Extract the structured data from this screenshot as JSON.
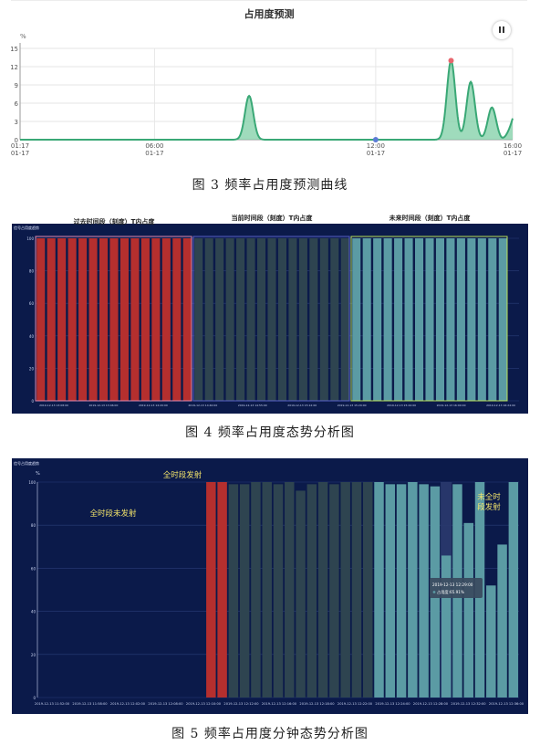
{
  "chart_data": [
    {
      "type": "area",
      "title": "占用度预测",
      "ylabel": "%",
      "ylim": [
        0,
        15
      ],
      "y_ticks": [
        "0",
        "3",
        "6",
        "9",
        "12",
        "15"
      ],
      "y_tick_values": [
        0,
        3,
        6,
        9,
        12,
        15
      ],
      "x_ticks": [
        {
          "value": 0,
          "line1": "01:17",
          "line2": "01-17"
        },
        {
          "value": 0.273,
          "line1": "06:00",
          "line2": "01-17"
        },
        {
          "value": 0.722,
          "line1": "12:00",
          "line2": "01-17"
        },
        {
          "value": 1,
          "line1": "16:00",
          "line2": "01-17"
        }
      ],
      "peaks": [
        {
          "center": 0.465,
          "height": 7.2
        },
        {
          "center": 0.875,
          "height": 13.0
        },
        {
          "center": 0.915,
          "height": 9.5
        },
        {
          "center": 0.958,
          "height": 5.3
        },
        {
          "center": 1.0,
          "height": 3.5
        }
      ],
      "markers": [
        {
          "x": 0.875,
          "y": 13.0,
          "color": "#e8666e"
        },
        {
          "x": 0.722,
          "y": 0,
          "color": "#5b7bd5"
        }
      ],
      "grid": true,
      "colors": {
        "line": "#3aa876",
        "fill": "#7fcfa6"
      },
      "pause_icon": "pause-icon"
    },
    {
      "type": "bar",
      "chart_label": "信号占用度趋势",
      "ylim": [
        0,
        100
      ],
      "y_ticks": [
        "0",
        "20",
        "40",
        "60",
        "80",
        "100"
      ],
      "y_tick_values": [
        0,
        20,
        40,
        60,
        80,
        100
      ],
      "groups": [
        {
          "label": "过去时间段（刻度）T内占度",
          "count": 15,
          "color": "#b52f2e",
          "box_color": "#e08ab0",
          "value": 100
        },
        {
          "label": "当前时间段（刻度）T内占度",
          "count": 15,
          "color": "#2e4450",
          "box_color": "#5a62c8",
          "value": 100
        },
        {
          "label": "未来时间段（刻度）T内占度",
          "count": 15,
          "color": "#5b9ba4",
          "box_color": "#b9e05a",
          "value": 100
        }
      ],
      "x_ticks": [
        "2019-12-13 13:08:00",
        "2019-12-13 13:46:00",
        "2019-12-13 14:20:00",
        "2019-12-13 14:40:00",
        "2019-12-13 14:55:00",
        "2019-12-13 15:12:00",
        "2019-12-13 15:29:00",
        "2019-12-13 15:44:00",
        "2019-12-13 16:00:00",
        "2019-12-13 16:24:00"
      ],
      "colors": {
        "background": "#0b1a4a",
        "grid": "#2a3d78",
        "axis_text": "#c9d3f0"
      }
    },
    {
      "type": "bar",
      "chart_label": "信号占用度趋势",
      "ylabel": "%",
      "ylim": [
        0,
        100
      ],
      "y_ticks": [
        "0",
        "20",
        "40",
        "60",
        "80",
        "100"
      ],
      "y_tick_values": [
        0,
        20,
        40,
        60,
        80,
        100
      ],
      "annotations": [
        {
          "text": "全时段未发射",
          "color": "#f2e36a"
        },
        {
          "text": "全时段发射",
          "color": "#f2e36a"
        },
        {
          "text": "未全时",
          "color": "#f2e36a"
        },
        {
          "text": "段发射",
          "color": "#f2e36a"
        }
      ],
      "bars": [
        {
          "idx": 15,
          "value": 100,
          "color": "#b52f2e"
        },
        {
          "idx": 16,
          "value": 100,
          "color": "#b52f2e"
        },
        {
          "idx": 17,
          "value": 99,
          "color": "#2e4450"
        },
        {
          "idx": 18,
          "value": 99,
          "color": "#2e4450"
        },
        {
          "idx": 19,
          "value": 100,
          "color": "#2e4450"
        },
        {
          "idx": 20,
          "value": 100,
          "color": "#2e4450"
        },
        {
          "idx": 21,
          "value": 99,
          "color": "#2e4450"
        },
        {
          "idx": 22,
          "value": 100,
          "color": "#2e4450"
        },
        {
          "idx": 23,
          "value": 96,
          "color": "#2e4450"
        },
        {
          "idx": 24,
          "value": 99,
          "color": "#2e4450"
        },
        {
          "idx": 25,
          "value": 100,
          "color": "#2e4450"
        },
        {
          "idx": 26,
          "value": 99,
          "color": "#2e4450"
        },
        {
          "idx": 27,
          "value": 100,
          "color": "#2e4450"
        },
        {
          "idx": 28,
          "value": 100,
          "color": "#2e4450"
        },
        {
          "idx": 29,
          "value": 100,
          "color": "#2e4450"
        },
        {
          "idx": 30,
          "value": 100,
          "color": "#5b9ba4"
        },
        {
          "idx": 31,
          "value": 99,
          "color": "#5b9ba4"
        },
        {
          "idx": 32,
          "value": 99,
          "color": "#5b9ba4"
        },
        {
          "idx": 33,
          "value": 100,
          "color": "#5b9ba4"
        },
        {
          "idx": 34,
          "value": 99,
          "color": "#5b9ba4"
        },
        {
          "idx": 35,
          "value": 98,
          "color": "#5b9ba4"
        },
        {
          "idx": 36,
          "value": 65.91,
          "color": "#5b9ba4"
        },
        {
          "idx": 37,
          "value": 99,
          "color": "#5b9ba4"
        },
        {
          "idx": 38,
          "value": 81,
          "color": "#5b9ba4"
        },
        {
          "idx": 39,
          "value": 100,
          "color": "#5b9ba4"
        },
        {
          "idx": 40,
          "value": 52,
          "color": "#5b9ba4"
        },
        {
          "idx": 41,
          "value": 71,
          "color": "#5b9ba4"
        },
        {
          "idx": 42,
          "value": 100,
          "color": "#5b9ba4"
        }
      ],
      "slots": 43,
      "highlight_slot": 36,
      "tooltip": {
        "line1": "2019-12-13 12:29:00",
        "line2": "占用度:65.91%"
      },
      "x_ticks": [
        "2019-12-13 11:52:00",
        "2019-12-13 11:58:00",
        "2019-12-13 12:02:00",
        "2019-12-13 12:08:00",
        "2019-12-13 12:10:00",
        "2019-12-13 12:12:00",
        "2019-12-13 12:16:00",
        "2019-12-13 12:18:00",
        "2019-12-13 12:22:00",
        "2019-12-13 12:24:00",
        "2019-12-13 12:28:00",
        "2019-12-13 12:32:00",
        "2019-12-13 12:36:00"
      ],
      "colors": {
        "background": "#0b1a4a",
        "grid": "#2a3d78",
        "axis_text": "#c9d3f0"
      }
    }
  ],
  "captions": {
    "fig3": "图 3  频率占用度预测曲线",
    "fig4": "图 4  频率占用度态势分析图",
    "fig5": "图 5  频率占用度分钟态势分析图"
  }
}
